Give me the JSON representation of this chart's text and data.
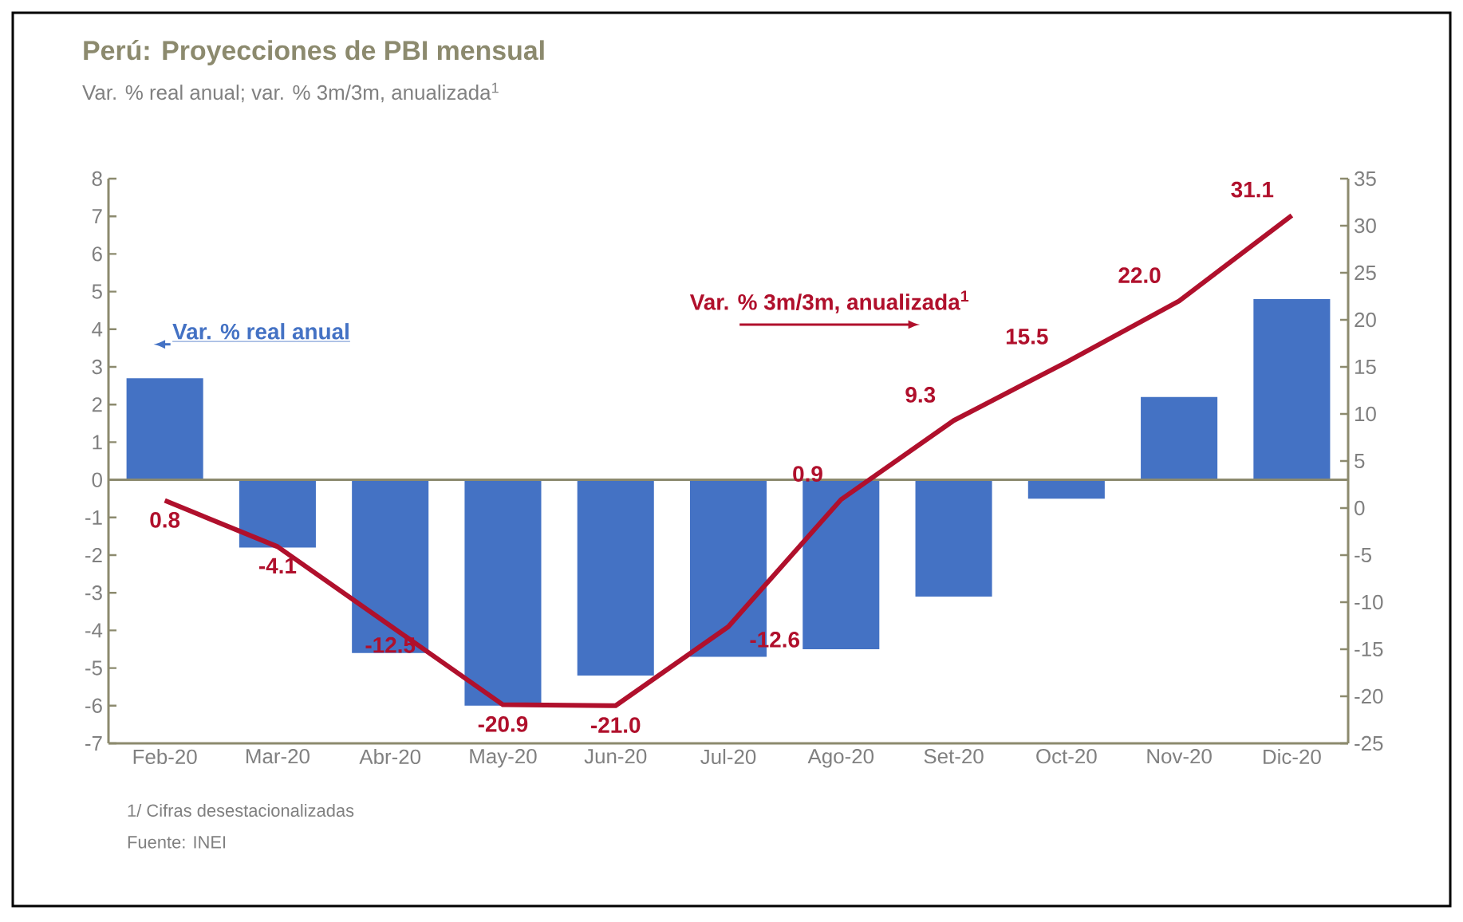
{
  "chart_data": {
    "type": "bar",
    "title": "Perú: Proyecciones de PBI mensual",
    "subtitle": "Var. % real anual; var. % 3m/3m, anualizada$^{1}$",
    "categories": [
      "Feb-20",
      "Mar-20",
      "Abr-20",
      "May-20",
      "Jun-20",
      "Jul-20",
      "Ago-20",
      "Set-20",
      "Oct-20",
      "Nov-20",
      "Dic-20"
    ],
    "series": [
      {
        "name": "Var. % real anual",
        "color": "#4472c4",
        "values": [
          2.7,
          -1.8,
          -4.6,
          -6.0,
          -5.2,
          -4.7,
          -4.5,
          -3.1,
          -0.5,
          2.2,
          4.8
        ]
      },
      {
        "name": "Var. % 3m/3m, anualizada$^{1}$",
        "type": "line",
        "axis": "y2",
        "color": "#b0102c",
        "values": [
          0.8,
          -4.1,
          -12.5,
          -20.9,
          -21.0,
          -12.6,
          0.9,
          9.3,
          15.5,
          22.0,
          31.1
        ],
        "value_labels": [
          "0.8",
          "-4.1",
          "-12.5",
          "-20.9",
          "-21.0",
          "-12.6",
          "0.9",
          "9.3",
          "15.5",
          "22.0",
          "31.1"
        ]
      }
    ],
    "ylim": [
      -7,
      8
    ],
    "yticks": [
      -7,
      -6,
      -5,
      -4,
      -3,
      -2,
      -1,
      0,
      1,
      2,
      3,
      4,
      5,
      6,
      7,
      8
    ],
    "y2lim": [
      -25,
      35
    ],
    "y2ticks": [
      -25,
      -20,
      -15,
      -10,
      -5,
      0,
      5,
      10,
      15,
      20,
      25,
      30,
      35
    ],
    "ref_lines": [
      {
        "axis": "y",
        "value": 0,
        "color": "#8c8a6e"
      }
    ],
    "grid": false,
    "line_style": "solid",
    "marker": "none",
    "annotations": [
      "1/ Cifras desestacionalizadas",
      "Fuente: INEI"
    ]
  }
}
